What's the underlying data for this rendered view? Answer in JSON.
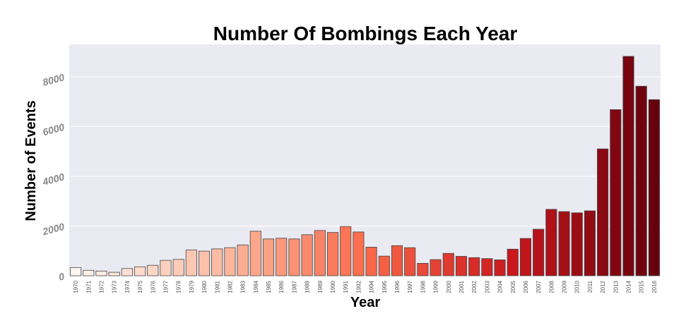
{
  "chart_data": {
    "type": "bar",
    "title": "Number Of Bombings Each Year",
    "xlabel": "Year",
    "ylabel": "Number of Events",
    "ylim": [
      0,
      9300
    ],
    "yticks": [
      0,
      2000,
      4000,
      6000,
      8000
    ],
    "grid": true,
    "categories": [
      "1970",
      "1971",
      "1972",
      "1973",
      "1974",
      "1975",
      "1976",
      "1977",
      "1978",
      "1979",
      "1980",
      "1981",
      "1982",
      "1983",
      "1984",
      "1985",
      "1986",
      "1987",
      "1988",
      "1989",
      "1990",
      "1991",
      "1992",
      "1994",
      "1995",
      "1996",
      "1997",
      "1998",
      "1999",
      "2000",
      "2001",
      "2002",
      "2003",
      "2004",
      "2005",
      "2006",
      "2007",
      "2008",
      "2009",
      "2010",
      "2011",
      "2012",
      "2013",
      "2014",
      "2015",
      "2016"
    ],
    "values": [
      330,
      220,
      190,
      140,
      290,
      360,
      420,
      620,
      660,
      1040,
      990,
      1080,
      1130,
      1240,
      1790,
      1480,
      1510,
      1480,
      1650,
      1820,
      1740,
      1980,
      1760,
      1150,
      790,
      1210,
      1130,
      500,
      650,
      900,
      780,
      730,
      690,
      640,
      1070,
      1500,
      1870,
      2670,
      2580,
      2530,
      2610,
      5100,
      6680,
      8820,
      7620,
      7080
    ],
    "colormap": [
      "#fff5f0",
      "#fcbba1",
      "#fb6a4a",
      "#cb181d",
      "#67000d"
    ]
  }
}
